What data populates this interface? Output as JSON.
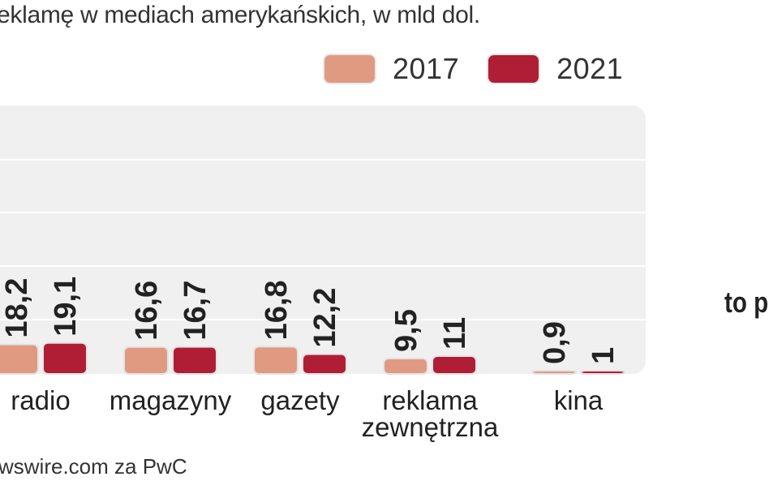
{
  "subtitle": "eklamę w mediach amerykańskich, w mld dol.",
  "source": "wswire.com za PwC",
  "side_text": "to p",
  "colors": {
    "y2017": "#e09a82",
    "y2021": "#b01e35",
    "panel": "#f0f0f0"
  },
  "chart_data": {
    "type": "bar",
    "categories": [
      "radio",
      "magazyny",
      "gazety",
      "reklama\nzewnętrzna",
      "kina"
    ],
    "series": [
      {
        "name": "2017",
        "values": [
          18.2,
          16.6,
          16.8,
          9.5,
          0.9
        ],
        "labels": [
          "18,2",
          "16,6",
          "16,8",
          "9,5",
          "0,9"
        ]
      },
      {
        "name": "2021",
        "values": [
          19.1,
          16.7,
          12.2,
          11,
          1
        ],
        "labels": [
          "19,1",
          "16,7",
          "12,2",
          "11",
          "1"
        ]
      }
    ],
    "title": "",
    "xlabel": "",
    "ylabel": "",
    "legend": "top-right",
    "grid": true
  }
}
